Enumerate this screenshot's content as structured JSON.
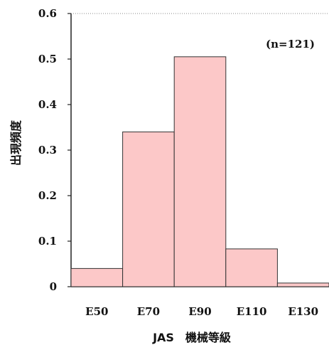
{
  "chart_data": {
    "type": "bar",
    "categories": [
      "E50",
      "E70",
      "E90",
      "E110",
      "E130"
    ],
    "values": [
      0.04,
      0.34,
      0.505,
      0.083,
      0.008
    ],
    "xlabel": "JAS　機械等級",
    "ylabel": "出現頻度",
    "ylim": [
      0,
      0.6
    ],
    "yticks": [
      "0",
      "0.1",
      "0.2",
      "0.3",
      "0.4",
      "0.5",
      "0.6"
    ],
    "annotation": "(n=121)",
    "bar_color": "#fcc8c8",
    "bar_edge_color": "#333333",
    "grid": false,
    "legend": "none"
  }
}
